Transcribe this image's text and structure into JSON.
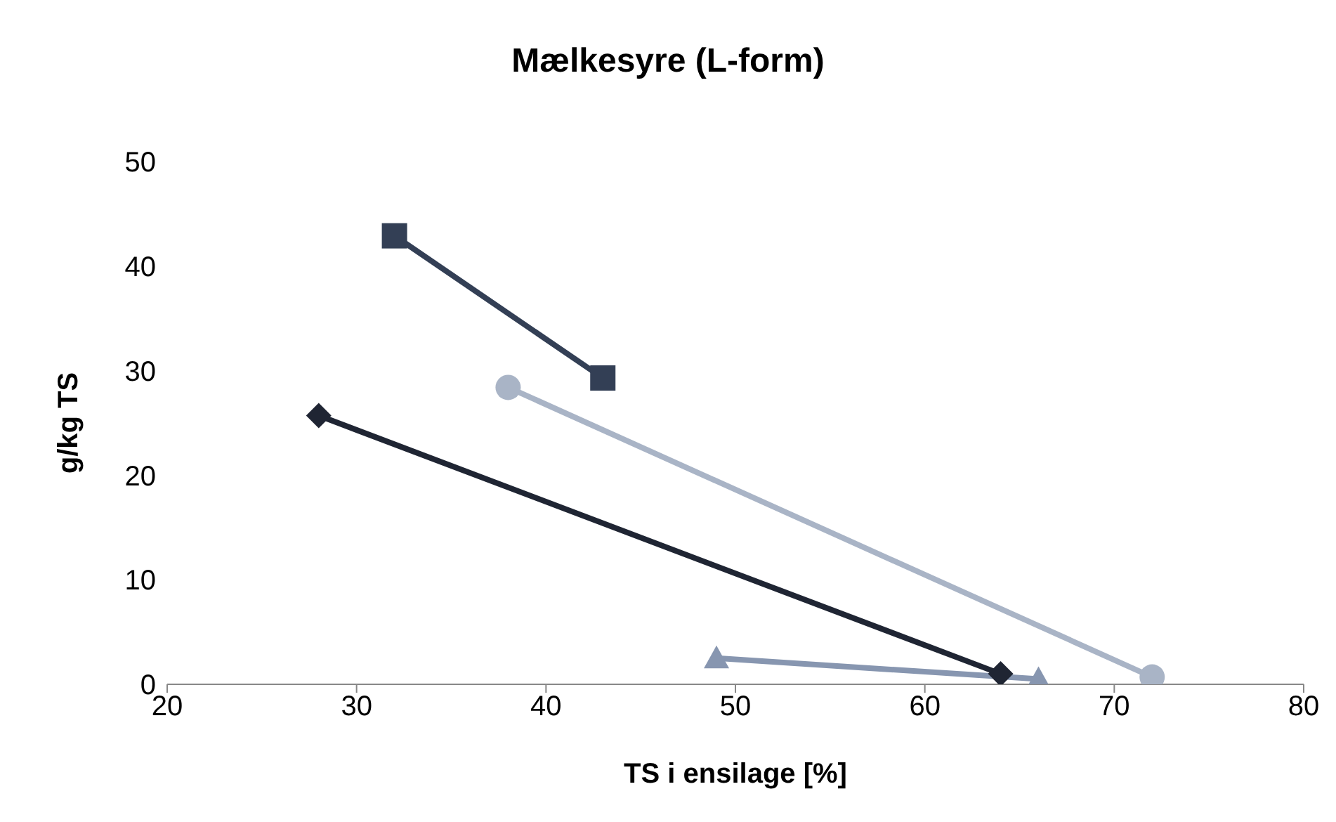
{
  "chart_data": {
    "type": "line",
    "title": "Mælkesyre (L-form)",
    "xlabel": "TS i ensilage [%]",
    "ylabel": "g/kg TS",
    "xlim": [
      20,
      80
    ],
    "xticks": [
      20,
      30,
      40,
      50,
      60,
      70,
      80
    ],
    "ylim": [
      0,
      50
    ],
    "yticks": [
      0,
      10,
      20,
      30,
      40,
      50
    ],
    "grid": false,
    "legend": false,
    "series": [
      {
        "color": "#1f2533",
        "marker": "diamond",
        "x": [
          28,
          64
        ],
        "values": [
          25.7,
          1
        ]
      },
      {
        "color": "#333f55",
        "marker": "square",
        "x": [
          32,
          43
        ],
        "values": [
          42.9,
          29.3
        ]
      },
      {
        "color": "#a9b4c6",
        "marker": "circle",
        "x": [
          38,
          72
        ],
        "values": [
          28.4,
          0.7
        ]
      },
      {
        "color": "#8796b0",
        "marker": "triangle",
        "x": [
          49,
          66
        ],
        "values": [
          2.5,
          0.5
        ]
      }
    ]
  }
}
